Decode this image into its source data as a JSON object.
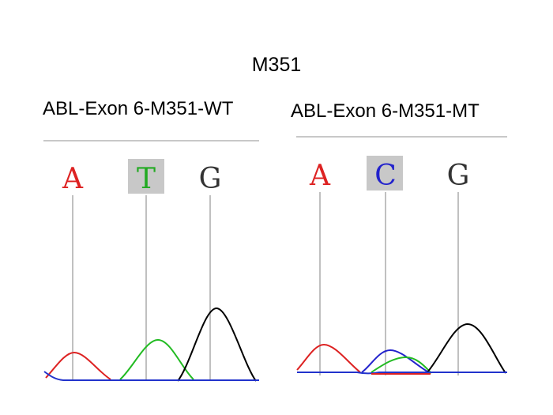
{
  "title": "M351",
  "panels": [
    {
      "id": "wt",
      "title": "ABL-Exon 6-M351-WT",
      "bases": [
        {
          "letter": "A",
          "color": "#dd2222",
          "highlighted": false
        },
        {
          "letter": "T",
          "color": "#22aa22",
          "highlighted": true
        },
        {
          "letter": "G",
          "color": "#333333",
          "highlighted": false
        }
      ]
    },
    {
      "id": "mt",
      "title": "ABL-Exon 6-M351-MT",
      "bases": [
        {
          "letter": "A",
          "color": "#dd2222",
          "highlighted": false
        },
        {
          "letter": "C",
          "color": "#2222cc",
          "highlighted": true
        },
        {
          "letter": "G",
          "color": "#333333",
          "highlighted": false
        }
      ]
    }
  ],
  "colors": {
    "A": "#dd2222",
    "T": "#22bb22",
    "C": "#2222cc",
    "G": "#000000",
    "baseline": "#2233cc",
    "divider": "#c8c8c8",
    "call_line": "#c0c0c0",
    "highlight_box": "#c8c8c8"
  }
}
